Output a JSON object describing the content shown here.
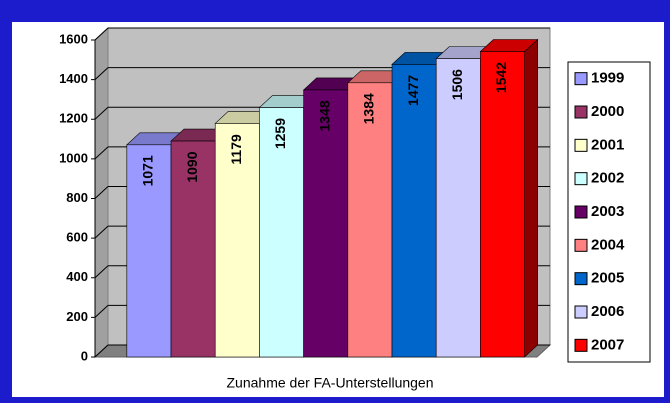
{
  "chart_data": {
    "type": "bar3d",
    "x_label": "Zunahme der FA-Unterstellungen",
    "series": [
      {
        "name": "1999",
        "color": "#9999ff",
        "values": [
          1071
        ]
      },
      {
        "name": "2000",
        "color": "#993366",
        "values": [
          1090
        ]
      },
      {
        "name": "2001",
        "color": "#ffffcc",
        "values": [
          1179
        ]
      },
      {
        "name": "2002",
        "color": "#ccffff",
        "values": [
          1259
        ]
      },
      {
        "name": "2003",
        "color": "#660066",
        "values": [
          1348
        ]
      },
      {
        "name": "2004",
        "color": "#ff8080",
        "values": [
          1384
        ]
      },
      {
        "name": "2005",
        "color": "#0066cc",
        "values": [
          1477
        ]
      },
      {
        "name": "2006",
        "color": "#ccccff",
        "values": [
          1506
        ]
      },
      {
        "name": "2007",
        "color": "#ff0000",
        "values": [
          1542
        ]
      }
    ],
    "ylim": [
      0,
      1600
    ],
    "yticks": [
      0,
      200,
      400,
      600,
      800,
      1000,
      1200,
      1400,
      1600
    ],
    "grid": true,
    "legend": "right"
  }
}
